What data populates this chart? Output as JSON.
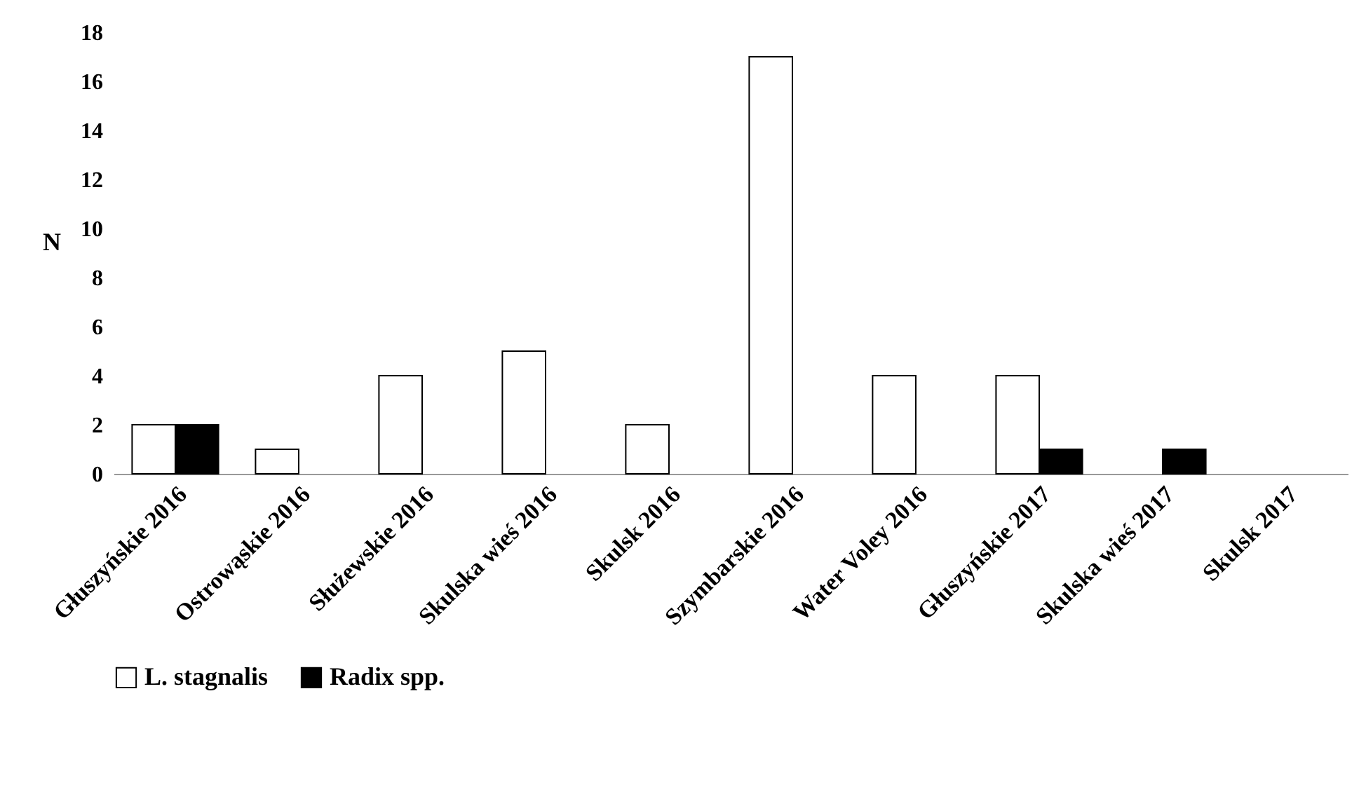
{
  "chart_data": {
    "type": "bar",
    "ylabel": "N",
    "categories": [
      "Głuszyńskie 2016",
      "Ostrowąskie 2016",
      "Służewskie 2016",
      "Skulska wieś 2016",
      "Skulsk 2016",
      "Szymbarskie 2016",
      "Water Voley 2016",
      "Głuszyńskie 2017",
      "Skulska wieś 2017",
      "Skulsk 2017"
    ],
    "series": [
      {
        "name": "L. stagnalis",
        "color": "#ffffff",
        "values": [
          2,
          1,
          4,
          5,
          2,
          17,
          4,
          4,
          0,
          0
        ]
      },
      {
        "name": "Radix spp.",
        "color": "#000000",
        "values": [
          2,
          0,
          0,
          0,
          0,
          0,
          0,
          1,
          1,
          0
        ]
      }
    ],
    "ylim": [
      0,
      18
    ],
    "yticks": [
      0,
      2,
      4,
      6,
      8,
      10,
      12,
      14,
      16,
      18
    ],
    "grid": false,
    "legend": "bottom"
  }
}
